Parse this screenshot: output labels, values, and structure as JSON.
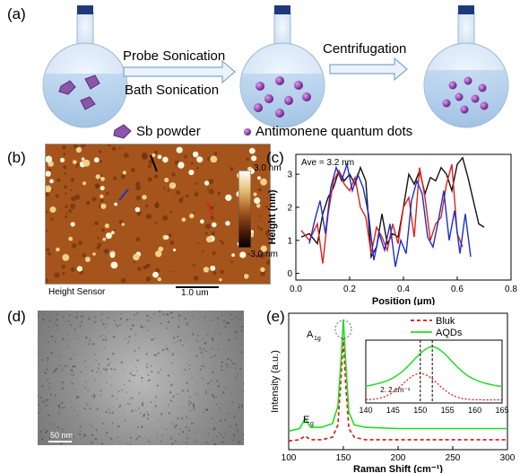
{
  "panel_labels": {
    "a": "(a)",
    "b": "(b)",
    "c": "(c)",
    "d": "(d)",
    "e": "(e)"
  },
  "schematic": {
    "step1_top": "Probe Sonication",
    "step1_bottom": "Bath Sonication",
    "step2": "Centrifugation",
    "legend_sb": "Sb powder",
    "legend_qd": "Antimonene quantum dots"
  },
  "afm": {
    "scale_max": "3.0 nm",
    "scale_min": "-3.0 nm",
    "sensor_label": "Height Sensor",
    "scalebar_label": "1.0 um"
  },
  "tem": {
    "scalebar_label": "50 nm"
  },
  "colors": {
    "black": "#111111",
    "red": "#e0201b",
    "blue": "#1a2fd0",
    "green": "#22dd22",
    "red_dash": "#dd1111"
  },
  "chart_data": [
    {
      "type": "line",
      "annotation": "Ave = 3.2 nm",
      "xlabel": "Position (μm)",
      "ylabel": "Height (nm)",
      "xlim": [
        0.0,
        0.8
      ],
      "ylim": [
        -0.2,
        3.6
      ],
      "xticks": [
        "0.0",
        "0.2",
        "0.4",
        "0.6",
        "0.8"
      ],
      "yticks": [
        "0",
        "1",
        "2",
        "3"
      ],
      "series": [
        {
          "color": "black",
          "x": [
            0.02,
            0.05,
            0.08,
            0.1,
            0.12,
            0.14,
            0.16,
            0.18,
            0.2,
            0.22,
            0.24,
            0.26,
            0.28,
            0.3,
            0.32,
            0.34,
            0.36,
            0.38,
            0.4,
            0.42,
            0.44,
            0.46,
            0.48,
            0.5,
            0.52,
            0.54,
            0.56,
            0.58,
            0.6,
            0.62,
            0.64,
            0.66,
            0.68,
            0.7
          ],
          "y": [
            1.1,
            1.2,
            0.9,
            1.8,
            2.3,
            2.6,
            3.1,
            2.8,
            3.0,
            2.7,
            3.2,
            2.8,
            0.5,
            0.8,
            1.8,
            0.9,
            1.2,
            1.1,
            2.0,
            3.0,
            2.7,
            3.1,
            2.4,
            2.9,
            2.8,
            3.2,
            3.0,
            2.5,
            3.3,
            3.5,
            2.9,
            2.2,
            1.5,
            1.4
          ]
        },
        {
          "color": "red",
          "x": [
            0.02,
            0.05,
            0.08,
            0.1,
            0.12,
            0.14,
            0.16,
            0.18,
            0.2,
            0.22,
            0.24,
            0.26,
            0.28,
            0.3,
            0.32,
            0.34,
            0.36,
            0.38,
            0.4,
            0.42,
            0.44,
            0.46,
            0.48,
            0.5,
            0.52,
            0.54,
            0.56,
            0.58,
            0.6,
            0.62
          ],
          "y": [
            1.3,
            1.0,
            1.5,
            0.3,
            1.8,
            2.8,
            3.1,
            2.7,
            2.5,
            2.9,
            2.0,
            1.7,
            0.6,
            1.4,
            1.1,
            0.7,
            1.5,
            0.9,
            2.0,
            2.3,
            1.1,
            3.2,
            2.3,
            1.0,
            1.5,
            1.7,
            2.7,
            3.3,
            1.2,
            0.8
          ]
        },
        {
          "color": "blue",
          "x": [
            0.05,
            0.07,
            0.09,
            0.11,
            0.13,
            0.15,
            0.17,
            0.19,
            0.21,
            0.23,
            0.25,
            0.27,
            0.29,
            0.31,
            0.33,
            0.35,
            0.37,
            0.39,
            0.41,
            0.43,
            0.45,
            0.47,
            0.49,
            0.51,
            0.53,
            0.55,
            0.57,
            0.59,
            0.61,
            0.63,
            0.65
          ],
          "y": [
            0.9,
            1.6,
            2.2,
            1.2,
            2.6,
            3.2,
            2.8,
            3.3,
            2.5,
            3.0,
            2.6,
            1.8,
            0.4,
            1.2,
            0.7,
            1.5,
            0.2,
            1.0,
            0.6,
            2.2,
            2.8,
            2.4,
            1.1,
            0.8,
            1.6,
            2.5,
            1.0,
            1.9,
            0.6,
            1.8,
            0.5
          ]
        }
      ]
    },
    {
      "type": "line",
      "xlabel": "Raman Shift (cm⁻¹)",
      "ylabel": "Intensity (a.u.)",
      "xlim": [
        100,
        300
      ],
      "xticks": [
        "100",
        "150",
        "200",
        "250",
        "300"
      ],
      "peak_labels": {
        "a1g": "A",
        "a1g_sub": "1g",
        "eg": "E",
        "eg_sub": "g"
      },
      "series": [
        {
          "name": "Bluk",
          "color": "red",
          "style": "dashed",
          "x": [
            100,
            110,
            115,
            120,
            130,
            140,
            145,
            148,
            150,
            152,
            155,
            160,
            170,
            200,
            250,
            300
          ],
          "y": [
            0.02,
            0.03,
            0.06,
            0.03,
            0.03,
            0.05,
            0.15,
            0.55,
            0.85,
            0.5,
            0.12,
            0.05,
            0.03,
            0.03,
            0.03,
            0.03
          ]
        },
        {
          "name": "AQDs",
          "color": "green",
          "style": "solid",
          "x": [
            100,
            110,
            115,
            120,
            130,
            140,
            145,
            148,
            150,
            152,
            155,
            160,
            170,
            200,
            250,
            300
          ],
          "y": [
            0.1,
            0.12,
            0.2,
            0.13,
            0.13,
            0.16,
            0.3,
            0.7,
            1.0,
            0.68,
            0.25,
            0.15,
            0.13,
            0.12,
            0.12,
            0.12
          ]
        }
      ],
      "inset": {
        "xticks": [
          "140",
          "145",
          "150",
          "155",
          "160",
          "165"
        ],
        "xlim": [
          140,
          165
        ],
        "annotation": "2. 2 cm⁻¹",
        "red_peak": 150,
        "green_peak": 152.2
      }
    }
  ]
}
